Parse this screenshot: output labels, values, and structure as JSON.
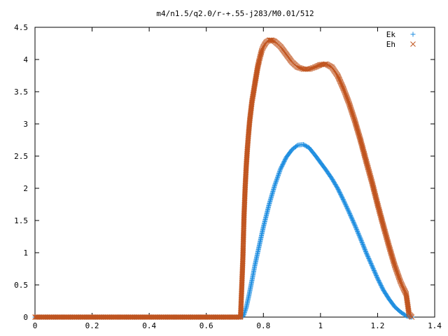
{
  "chart_data": {
    "type": "scatter",
    "title": "m4/n1.5/q2.0/r-+.55-j283/M0.01/512",
    "xlabel": "",
    "ylabel": "",
    "xlim": [
      0,
      1.4
    ],
    "ylim": [
      0,
      4.5
    ],
    "xticks": [
      "0",
      "0.2",
      "0.4",
      "0.6",
      "0.8",
      "1",
      "1.2",
      "1.4"
    ],
    "yticks": [
      "0",
      "0.5",
      "1",
      "1.5",
      "2",
      "2.5",
      "3",
      "3.5",
      "4",
      "4.5"
    ],
    "grid": false,
    "legend_position": "top-right",
    "series": [
      {
        "name": "Ek",
        "marker": "plus",
        "color": "#1f8ee0",
        "x": [
          0,
          0.05,
          0.1,
          0.15,
          0.2,
          0.25,
          0.3,
          0.35,
          0.4,
          0.45,
          0.5,
          0.55,
          0.6,
          0.65,
          0.7,
          0.72,
          0.73,
          0.74,
          0.75,
          0.76,
          0.77,
          0.78,
          0.8,
          0.82,
          0.84,
          0.86,
          0.88,
          0.9,
          0.92,
          0.94,
          0.96,
          0.98,
          1.0,
          1.02,
          1.04,
          1.06,
          1.08,
          1.1,
          1.12,
          1.14,
          1.16,
          1.18,
          1.2,
          1.22,
          1.24,
          1.26,
          1.28,
          1.3,
          1.31,
          1.32
        ],
        "y": [
          0,
          0,
          0,
          0,
          0,
          0,
          0,
          0,
          0,
          0,
          0,
          0,
          0,
          0,
          0,
          0,
          0.02,
          0.15,
          0.35,
          0.57,
          0.8,
          1.0,
          1.4,
          1.75,
          2.05,
          2.3,
          2.48,
          2.6,
          2.67,
          2.68,
          2.63,
          2.52,
          2.4,
          2.28,
          2.15,
          2.0,
          1.82,
          1.63,
          1.43,
          1.22,
          1.0,
          0.8,
          0.6,
          0.42,
          0.28,
          0.16,
          0.08,
          0.02,
          0.01,
          0
        ]
      },
      {
        "name": "Eh",
        "marker": "cross",
        "color": "#c0541e",
        "x": [
          0,
          0.05,
          0.1,
          0.15,
          0.2,
          0.25,
          0.3,
          0.35,
          0.4,
          0.45,
          0.5,
          0.55,
          0.6,
          0.65,
          0.7,
          0.72,
          0.728,
          0.732,
          0.736,
          0.74,
          0.744,
          0.748,
          0.752,
          0.756,
          0.76,
          0.765,
          0.77,
          0.775,
          0.78,
          0.785,
          0.79,
          0.795,
          0.8,
          0.81,
          0.82,
          0.83,
          0.84,
          0.86,
          0.88,
          0.9,
          0.92,
          0.94,
          0.96,
          0.98,
          1.0,
          1.02,
          1.04,
          1.06,
          1.08,
          1.1,
          1.12,
          1.14,
          1.16,
          1.18,
          1.2,
          1.22,
          1.24,
          1.26,
          1.28,
          1.29,
          1.3,
          1.31,
          1.32
        ],
        "y": [
          0,
          0,
          0,
          0,
          0,
          0,
          0,
          0,
          0,
          0,
          0,
          0,
          0,
          0,
          0,
          0,
          0.9,
          1.55,
          2.0,
          2.35,
          2.62,
          2.85,
          3.05,
          3.2,
          3.35,
          3.48,
          3.62,
          3.75,
          3.88,
          3.98,
          4.07,
          4.15,
          4.2,
          4.27,
          4.3,
          4.3,
          4.28,
          4.2,
          4.08,
          3.96,
          3.88,
          3.85,
          3.85,
          3.88,
          3.92,
          3.93,
          3.88,
          3.75,
          3.55,
          3.32,
          3.05,
          2.75,
          2.42,
          2.1,
          1.75,
          1.42,
          1.1,
          0.8,
          0.55,
          0.45,
          0.36,
          0.05,
          0
        ]
      }
    ]
  }
}
